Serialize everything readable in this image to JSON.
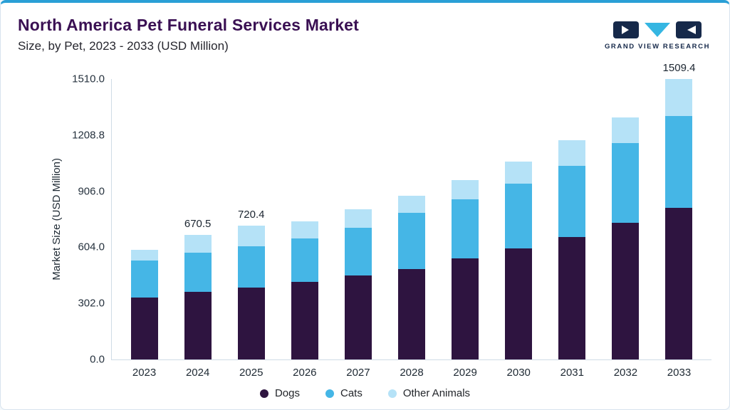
{
  "header": {
    "title": "North America Pet Funeral Services Market",
    "subtitle": "Size, by Pet, 2023 - 2033 (USD Million)"
  },
  "logo": {
    "text": "GRAND VIEW RESEARCH",
    "navy": "#16294a",
    "cyan": "#35b6e2"
  },
  "chart_data": {
    "type": "bar",
    "stacked": true,
    "title": "North America Pet Funeral Services Market Size, by Pet, 2023 - 2033 (USD Million)",
    "ylabel": "Market Size (USD Million)",
    "ylim": [
      0,
      1510
    ],
    "yticks": [
      "0.0",
      "302.0",
      "604.0",
      "906.0",
      "1208.8",
      "1510.0"
    ],
    "categories": [
      "2023",
      "2024",
      "2025",
      "2026",
      "2027",
      "2028",
      "2029",
      "2030",
      "2031",
      "2032",
      "2033"
    ],
    "series": [
      {
        "name": "Dogs",
        "color": "#2e1440",
        "values": [
          333,
          364,
          387,
          418,
          452,
          487,
          544,
          598,
          659,
          736,
          817
        ]
      },
      {
        "name": "Cats",
        "color": "#45b6e6",
        "values": [
          200,
          212,
          223,
          234,
          257,
          303,
          319,
          349,
          384,
          429,
          494
        ]
      },
      {
        "name": "Other Animals",
        "color": "#b5e2f7",
        "values": [
          57,
          94.5,
          110.4,
          93,
          101,
          90,
          102,
          118,
          137,
          140,
          198.4
        ]
      }
    ],
    "bar_labels": {
      "2024": "670.5",
      "2025": "720.4",
      "2033": "1509.4"
    },
    "legend_position": "bottom",
    "grid": false
  },
  "accent": {
    "top_line": "#2a9fd6"
  }
}
